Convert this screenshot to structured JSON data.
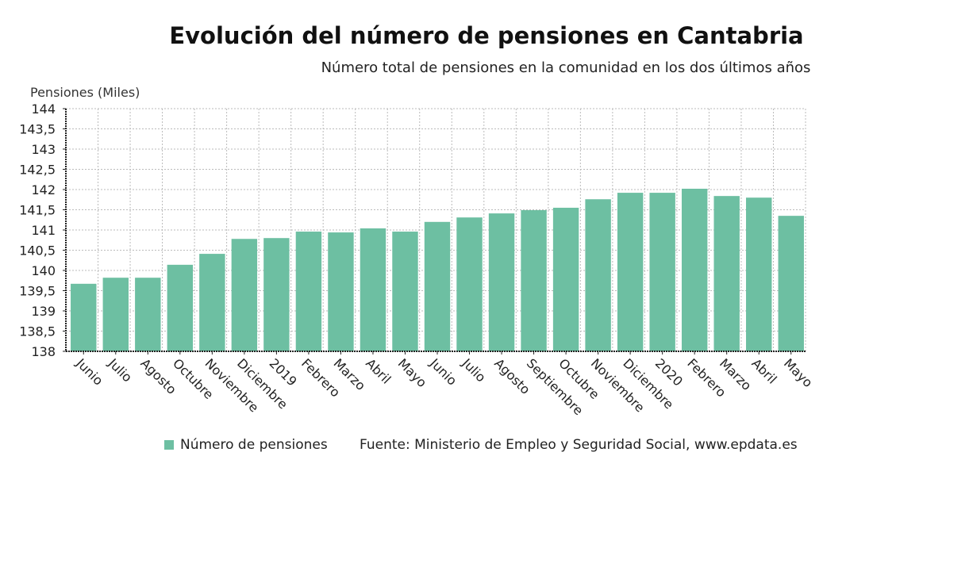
{
  "chart_data": {
    "type": "bar",
    "title": "Evolución del número de pensiones en Cantabria",
    "subtitle": "Número total de pensiones en la comunidad en los dos últimos años",
    "ylabel": "Pensiones (Miles)",
    "xlabel": "",
    "ylim": [
      138,
      144
    ],
    "yticks": [
      "138",
      "138,5",
      "139",
      "139,5",
      "140",
      "140,5",
      "141",
      "141,5",
      "142",
      "142,5",
      "143",
      "143,5",
      "144"
    ],
    "grid": true,
    "categories": [
      "Junio",
      "Julio",
      "Agosto",
      "Octubre",
      "Noviembre",
      "Diciembre",
      "2019",
      "Febrero",
      "Marzo",
      "Abril",
      "Mayo",
      "Junio",
      "Julio",
      "Agosto",
      "Septiembre",
      "Octubre",
      "Noviembre",
      "Diciembre",
      "2020",
      "Febrero",
      "Marzo",
      "Abril",
      "Mayo"
    ],
    "series": [
      {
        "name": "Número de pensiones",
        "values": [
          139.67,
          139.82,
          139.82,
          140.14,
          140.41,
          140.78,
          140.8,
          140.96,
          140.94,
          141.04,
          140.96,
          141.2,
          141.31,
          141.41,
          141.49,
          141.55,
          141.76,
          141.92,
          141.92,
          142.02,
          141.84,
          141.8,
          141.35
        ]
      }
    ],
    "color": "#6dbfa2",
    "legend_position": "bottom",
    "source": "Fuente: Ministerio de Empleo y Seguridad Social, www.epdata.es"
  }
}
